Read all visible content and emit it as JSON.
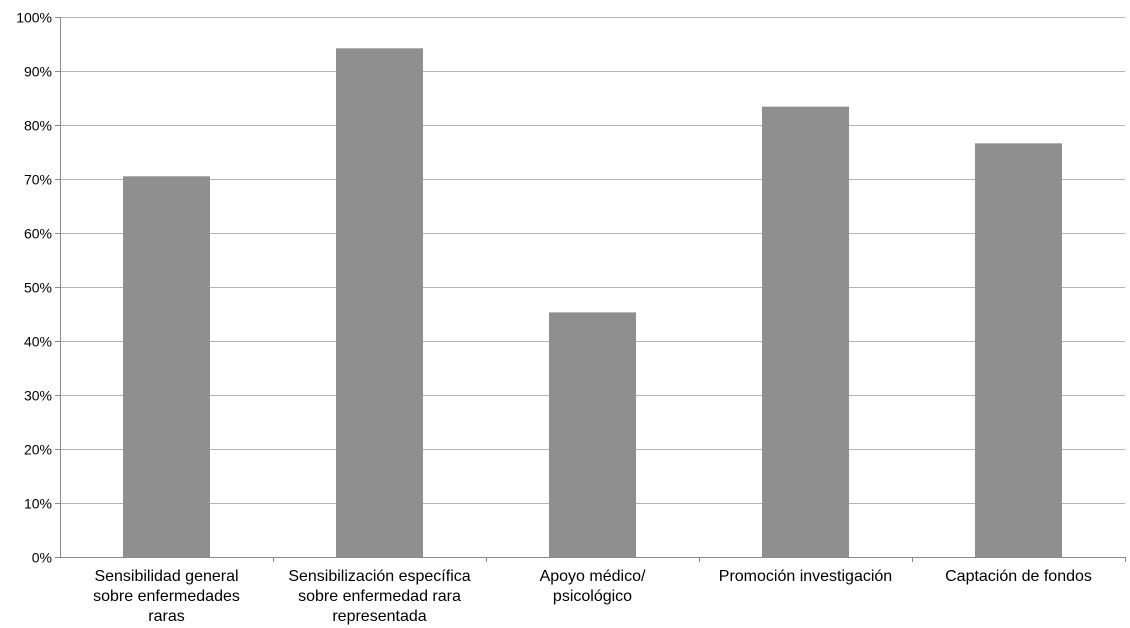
{
  "chart_data": {
    "type": "bar",
    "title": "",
    "xlabel": "",
    "ylabel": "",
    "categories": [
      [
        "Sensibilidad general",
        "sobre enfermedades",
        "raras"
      ],
      [
        "Sensibilización específica",
        "sobre enfermedad rara",
        "representada"
      ],
      [
        "Apoyo médico/",
        "psicológico"
      ],
      [
        "Promoción investigación"
      ],
      [
        "Captación de fondos"
      ]
    ],
    "values": [
      70.5,
      94.2,
      45.3,
      83.4,
      76.6
    ],
    "ylim": [
      0,
      100
    ],
    "yticks": [
      0,
      10,
      20,
      30,
      40,
      50,
      60,
      70,
      80,
      90,
      100
    ],
    "ytick_labels": [
      "0%",
      "10%",
      "20%",
      "30%",
      "40%",
      "50%",
      "60%",
      "70%",
      "80%",
      "90%",
      "100%"
    ],
    "grid": true,
    "legend": "none",
    "colors": {
      "bar": "#8f8f8f",
      "grid": "#b3b3b3",
      "axis": "#8a8a8a",
      "text": "#000000"
    }
  }
}
